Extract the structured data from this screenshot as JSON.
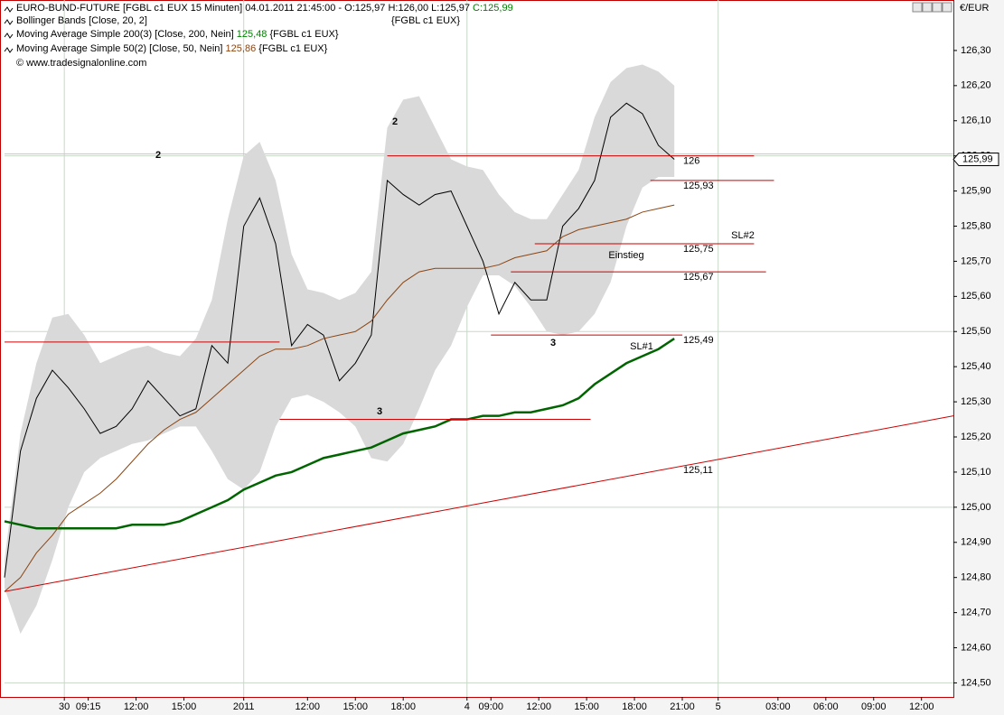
{
  "chart_data": {
    "type": "line",
    "title": "EURO-BUND-FUTURE [FGBL c1 EUX  15 Minuten] 04.01.2011 21:45:00 - O:125,97 H:126,00 L:125,97",
    "close_label": "C:125,99",
    "symbol_label": "{FGBL c1 EUX}",
    "copyright": "© www.tradesignalonline.com",
    "currency": "€/EUR",
    "last_price": {
      "value": 125.99,
      "label": "125,99"
    },
    "xlim": [
      0,
      238
    ],
    "ylim": [
      124.46,
      126.4
    ],
    "xticks": [
      {
        "value": 15,
        "label": "30"
      },
      {
        "value": 21,
        "label": "09:15"
      },
      {
        "value": 33,
        "label": "12:00"
      },
      {
        "value": 45,
        "label": "15:00"
      },
      {
        "value": 60,
        "label": "2011"
      },
      {
        "value": 76,
        "label": "12:00"
      },
      {
        "value": 88,
        "label": "15:00"
      },
      {
        "value": 100,
        "label": "18:00"
      },
      {
        "value": 116,
        "label": "4"
      },
      {
        "value": 122,
        "label": "09:00"
      },
      {
        "value": 134,
        "label": "12:00"
      },
      {
        "value": 146,
        "label": "15:00"
      },
      {
        "value": 158,
        "label": "18:00"
      },
      {
        "value": 170,
        "label": "21:00"
      },
      {
        "value": 179,
        "label": "5"
      },
      {
        "value": 194,
        "label": "03:00"
      },
      {
        "value": 206,
        "label": "06:00"
      },
      {
        "value": 218,
        "label": "09:00"
      },
      {
        "value": 230,
        "label": "12:00"
      }
    ],
    "yticks": [
      {
        "value": 124.5,
        "label": "124,50"
      },
      {
        "value": 124.6,
        "label": "124,60"
      },
      {
        "value": 124.7,
        "label": "124,70"
      },
      {
        "value": 124.8,
        "label": "124,80"
      },
      {
        "value": 124.9,
        "label": "124,90"
      },
      {
        "value": 125.0,
        "label": "125,00"
      },
      {
        "value": 125.1,
        "label": "125,10"
      },
      {
        "value": 125.2,
        "label": "125,20"
      },
      {
        "value": 125.3,
        "label": "125,30"
      },
      {
        "value": 125.4,
        "label": "125,40"
      },
      {
        "value": 125.5,
        "label": "125,50"
      },
      {
        "value": 125.6,
        "label": "125,60"
      },
      {
        "value": 125.7,
        "label": "125,70"
      },
      {
        "value": 125.8,
        "label": "125,80"
      },
      {
        "value": 125.9,
        "label": "125,90"
      },
      {
        "value": 126.0,
        "label": "126,00"
      },
      {
        "value": 126.1,
        "label": "126,10"
      },
      {
        "value": 126.2,
        "label": "126,20"
      },
      {
        "value": 126.3,
        "label": "126,30"
      }
    ],
    "x": [
      0,
      4,
      8,
      12,
      16,
      20,
      24,
      28,
      32,
      36,
      40,
      44,
      48,
      52,
      56,
      60,
      64,
      68,
      72,
      76,
      80,
      84,
      88,
      92,
      96,
      100,
      104,
      108,
      112,
      116,
      120,
      124,
      128,
      132,
      136,
      140,
      144,
      148,
      152,
      156,
      160,
      164,
      168
    ],
    "bands": {
      "name": "Bollinger Bands [Close, 20, 2]",
      "color": "#d9d9d9",
      "upper": [
        124.85,
        125.21,
        125.41,
        125.54,
        125.55,
        125.49,
        125.41,
        125.43,
        125.45,
        125.46,
        125.44,
        125.43,
        125.48,
        125.59,
        125.82,
        126.0,
        126.04,
        125.93,
        125.72,
        125.62,
        125.61,
        125.59,
        125.61,
        125.67,
        126.08,
        126.16,
        126.17,
        126.08,
        125.99,
        125.97,
        125.96,
        125.89,
        125.84,
        125.82,
        125.82,
        125.89,
        125.96,
        126.11,
        126.21,
        126.25,
        126.26,
        126.24,
        126.2
      ],
      "lower": [
        124.77,
        124.64,
        124.72,
        124.85,
        125.0,
        125.1,
        125.14,
        125.16,
        125.18,
        125.19,
        125.21,
        125.23,
        125.23,
        125.16,
        125.08,
        125.05,
        125.1,
        125.23,
        125.31,
        125.32,
        125.3,
        125.27,
        125.23,
        125.14,
        125.13,
        125.18,
        125.28,
        125.39,
        125.46,
        125.57,
        125.66,
        125.66,
        125.63,
        125.57,
        125.5,
        125.49,
        125.5,
        125.55,
        125.64,
        125.8,
        125.91,
        125.94,
        125.94
      ]
    },
    "series": [
      {
        "color": "#000000",
        "values": [
          124.8,
          125.16,
          125.31,
          125.39,
          125.34,
          125.28,
          125.21,
          125.23,
          125.28,
          125.36,
          125.31,
          125.26,
          125.28,
          125.46,
          125.41,
          125.8,
          125.88,
          125.75,
          125.46,
          125.52,
          125.49,
          125.36,
          125.41,
          125.49,
          125.93,
          125.89,
          125.86,
          125.89,
          125.9,
          125.8,
          125.7,
          125.55,
          125.64,
          125.59,
          125.59,
          125.8,
          125.85,
          125.93,
          126.11,
          126.15,
          126.12,
          126.03,
          125.99
        ]
      },
      {
        "name": "Moving Average Simple 200(3) [Close, 200, Nein]",
        "color": "#006400",
        "last_label": "125,48",
        "values": [
          124.96,
          124.95,
          124.94,
          124.94,
          124.94,
          124.94,
          124.94,
          124.94,
          124.95,
          124.95,
          124.95,
          124.96,
          124.98,
          125.0,
          125.02,
          125.05,
          125.07,
          125.09,
          125.1,
          125.12,
          125.14,
          125.15,
          125.16,
          125.17,
          125.19,
          125.21,
          125.22,
          125.23,
          125.25,
          125.25,
          125.26,
          125.26,
          125.27,
          125.27,
          125.28,
          125.29,
          125.31,
          125.35,
          125.38,
          125.41,
          125.43,
          125.45,
          125.48
        ]
      },
      {
        "name": "Moving Average Simple 50(2) [Close, 50, Nein]",
        "color": "#8b4513",
        "last_label": "125,86",
        "values": [
          124.76,
          124.8,
          124.87,
          124.92,
          124.98,
          125.01,
          125.04,
          125.08,
          125.13,
          125.18,
          125.22,
          125.25,
          125.27,
          125.31,
          125.35,
          125.39,
          125.43,
          125.45,
          125.45,
          125.46,
          125.48,
          125.49,
          125.5,
          125.53,
          125.59,
          125.64,
          125.67,
          125.68,
          125.68,
          125.68,
          125.68,
          125.69,
          125.71,
          125.72,
          125.73,
          125.77,
          125.79,
          125.8,
          125.81,
          125.82,
          125.84,
          125.85,
          125.86
        ]
      }
    ],
    "levels": [
      {
        "value": 126.0,
        "label": "126",
        "x": [
          96,
          188
        ]
      },
      {
        "value": 125.93,
        "label": "125,93",
        "x": [
          162,
          193
        ]
      },
      {
        "value": 125.75,
        "label": "125,75",
        "x": [
          133,
          188
        ]
      },
      {
        "value": 125.67,
        "label": "125,67",
        "x": [
          127,
          191
        ]
      },
      {
        "value": 125.49,
        "label": "125,49",
        "x": [
          122,
          170
        ]
      },
      {
        "value": 125.47,
        "x": [
          0,
          69
        ]
      },
      {
        "value": 125.25,
        "x": [
          69,
          147
        ]
      }
    ],
    "trendline": {
      "label": "125,11",
      "x": [
        0,
        238
      ],
      "values": [
        124.76,
        125.26
      ],
      "color": "#cc0000"
    },
    "level_color": "#cc0000",
    "annotations": [
      "2",
      "2",
      "3",
      "3",
      "SL#2",
      "Einstieg",
      "SL#1"
    ]
  }
}
